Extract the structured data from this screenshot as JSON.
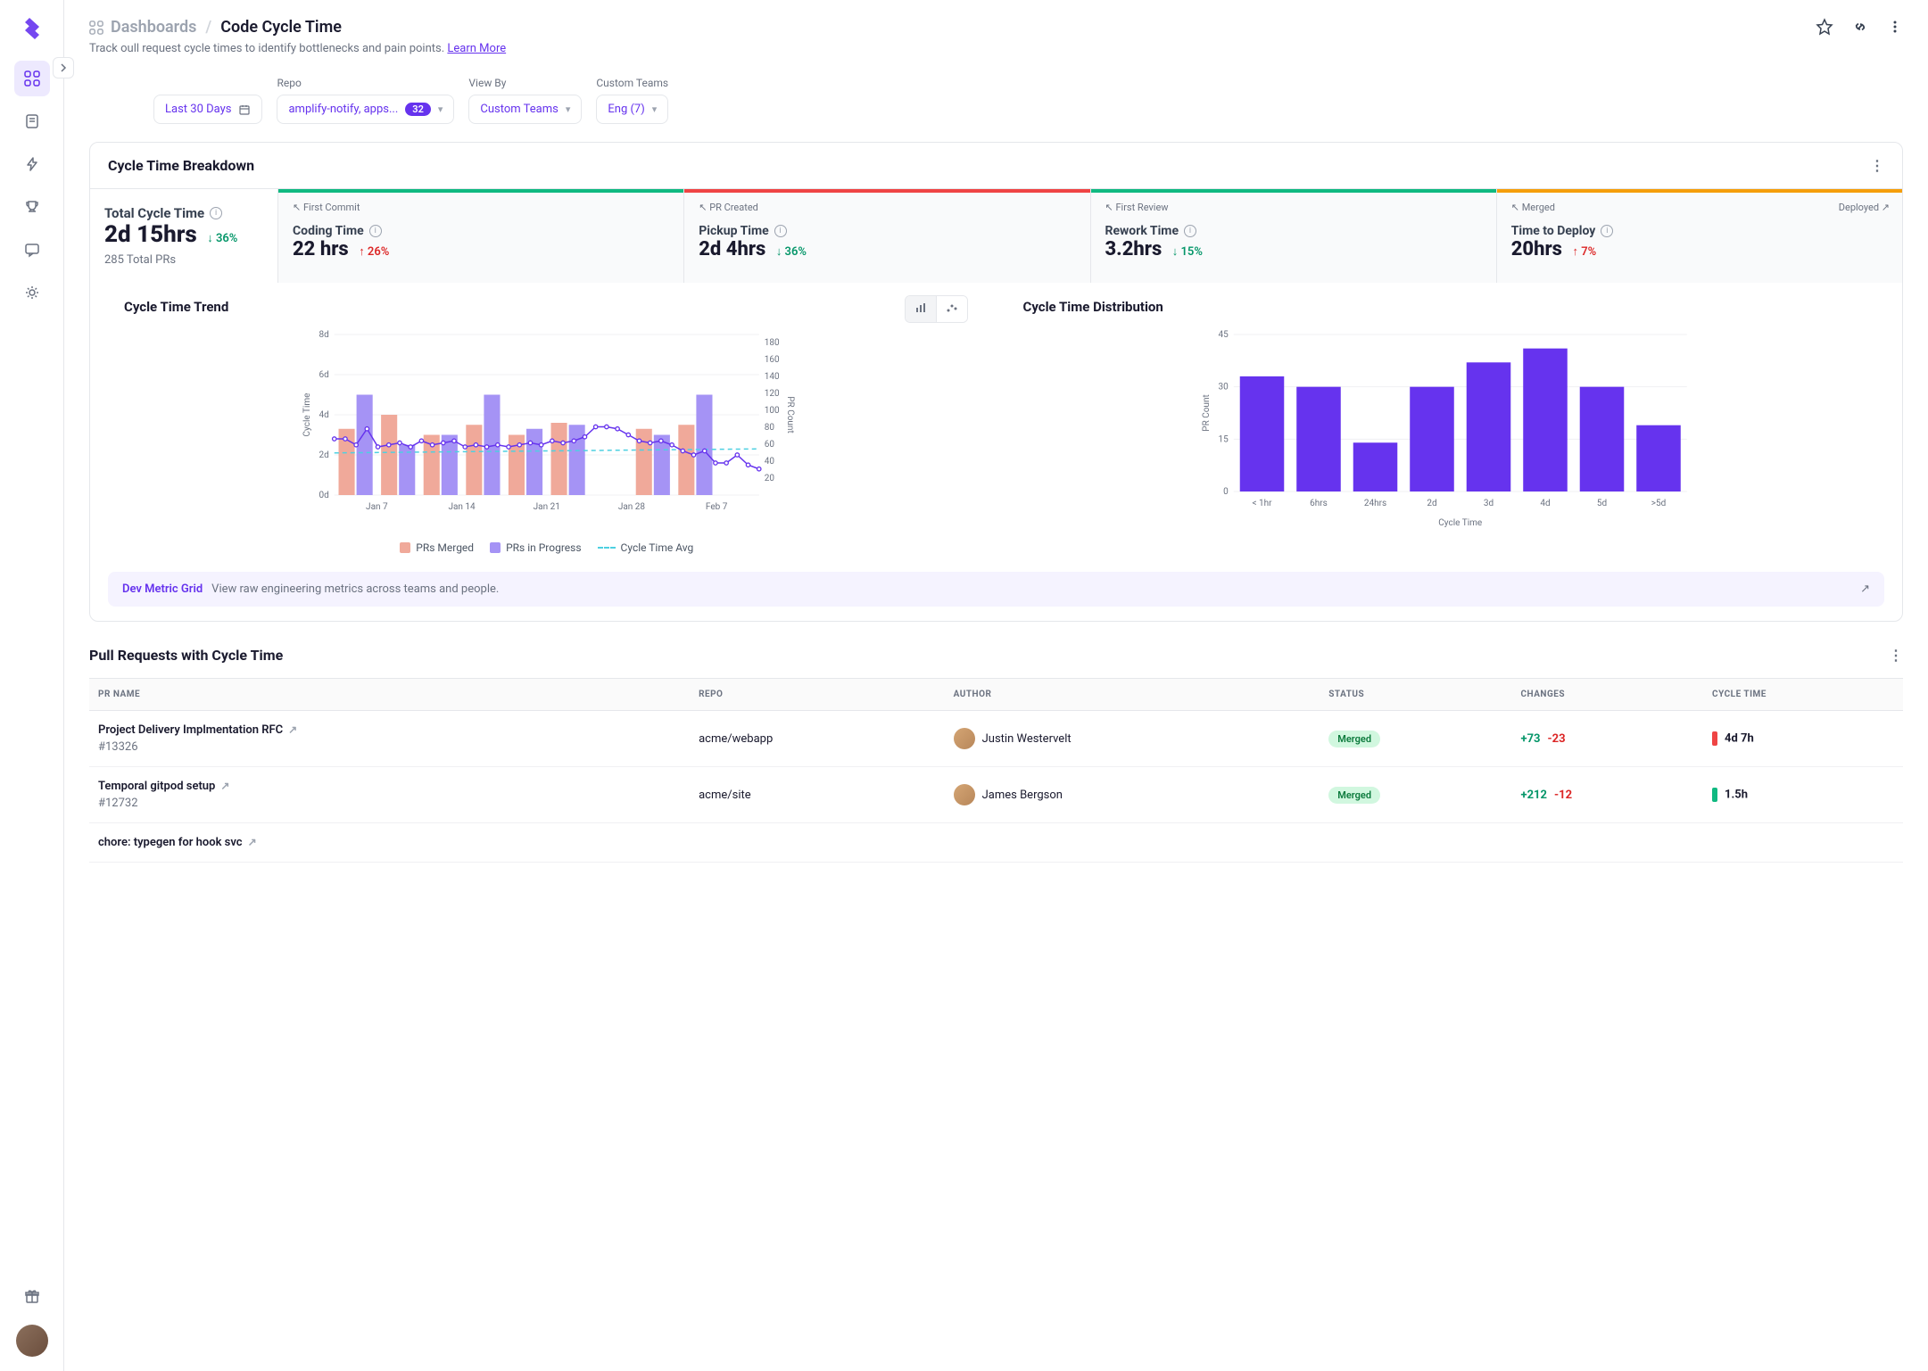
{
  "breadcrumb": {
    "parent": "Dashboards",
    "current": "Code Cycle Time"
  },
  "subtitle": "Track oull request cycle times to identify bottlenecks and pain points.",
  "learn_more": "Learn More",
  "filters": {
    "date": "Last 30 Days",
    "repo_label": "Repo",
    "repo_value": "amplify-notify, apps...",
    "repo_count": "32",
    "viewby_label": "View By",
    "viewby_value": "Custom Teams",
    "teams_label": "Custom Teams",
    "teams_value": "Eng (7)"
  },
  "breakdown": {
    "title": "Cycle Time Breakdown",
    "total": {
      "title": "Total Cycle Time",
      "value": "2d 15hrs",
      "delta": "36%",
      "delta_dir": "down",
      "sub": "285 Total PRs"
    },
    "stages": [
      {
        "event": "First Commit",
        "title": "Coding Time",
        "value": "22 hrs",
        "delta": "26%",
        "delta_dir": "up",
        "bar_color": "#10b981"
      },
      {
        "event": "PR Created",
        "title": "Pickup Time",
        "value": "2d 4hrs",
        "delta": "36%",
        "delta_dir": "down",
        "bar_color": "#ef4444"
      },
      {
        "event": "First Review",
        "title": "Rework Time",
        "value": "3.2hrs",
        "delta": "15%",
        "delta_dir": "down",
        "bar_color": "#10b981"
      },
      {
        "event": "Merged",
        "event_right": "Deployed",
        "title": "Time to Deploy",
        "value": "20hrs",
        "delta": "7%",
        "delta_dir": "up",
        "bar_color": "#f59e0b"
      }
    ]
  },
  "trend_chart": {
    "title": "Cycle Time Trend",
    "y_left_label": "Cycle Time",
    "y_right_label": "PR Count",
    "y_left_ticks": [
      "0d",
      "2d",
      "4d",
      "6d",
      "8d"
    ],
    "y_right_ticks": [
      "20",
      "40",
      "60",
      "80",
      "100",
      "120",
      "140",
      "160",
      "180"
    ],
    "x_ticks": [
      "Jan 7",
      "Jan 14",
      "Jan 21",
      "Jan 28",
      "Feb 7"
    ],
    "colors": {
      "merged": "#f0a99a",
      "progress": "#a593f5",
      "line": "#6633ee",
      "avg": "#4dd0e1",
      "grid": "#f0f0f3"
    },
    "bars_merged": [
      3.3,
      4.0,
      3.0,
      3.5,
      3.0,
      3.6,
      0,
      3.3,
      3.5,
      0
    ],
    "bars_progress": [
      5.0,
      2.5,
      3.0,
      5.0,
      3.3,
      3.5,
      0,
      3.0,
      5.0,
      0
    ],
    "line_y": [
      2.8,
      2.8,
      2.5,
      3.3,
      2.4,
      2.5,
      2.6,
      2.4,
      2.7,
      2.5,
      2.6,
      2.7,
      2.4,
      2.5,
      2.4,
      2.5,
      2.4,
      2.5,
      2.6,
      2.5,
      2.7,
      2.6,
      2.7,
      2.9,
      3.4,
      3.4,
      3.3,
      3.0,
      2.7,
      2.6,
      2.7,
      2.5,
      2.2,
      2.0,
      2.2,
      1.6,
      1.6,
      2.0,
      1.5,
      1.3
    ],
    "avg_start": 2.1,
    "avg_end": 2.3,
    "legend": {
      "merged": "PRs Merged",
      "progress": "PRs in Progress",
      "avg": "Cycle Time Avg"
    }
  },
  "dist_chart": {
    "title": "Cycle Time Distribution",
    "y_label": "PR Count",
    "x_label": "Cycle Time",
    "y_ticks": [
      "0",
      "15",
      "30",
      "45"
    ],
    "categories": [
      "< 1hr",
      "6hrs",
      "24hrs",
      "2d",
      "3d",
      "4d",
      "5d",
      ">5d"
    ],
    "values": [
      33,
      30,
      14,
      30,
      37,
      41,
      30,
      19
    ],
    "bar_color": "#6633ee",
    "grid_color": "#f0f0f3"
  },
  "callout": {
    "title": "Dev Metric Grid",
    "text": "View raw engineering metrics across teams and people."
  },
  "pr_table": {
    "title": "Pull Requests with Cycle Time",
    "columns": [
      "PR NAME",
      "REPO",
      "AUTHOR",
      "STATUS",
      "CHANGES",
      "CYCLE TIME"
    ],
    "rows": [
      {
        "name": "Project Delivery Implmentation RFC",
        "num": "#13326",
        "repo": "acme/webapp",
        "author": "Justin Westervelt",
        "status": "Merged",
        "add": "+73",
        "del": "-23",
        "ct": "4d 7h",
        "ct_color": "#ef4444"
      },
      {
        "name": "Temporal gitpod setup",
        "num": "#12732",
        "repo": "acme/site",
        "author": "James Bergson",
        "status": "Merged",
        "add": "+212",
        "del": "-12",
        "ct": "1.5h",
        "ct_color": "#10b981"
      },
      {
        "name": "chore: typegen for hook svc",
        "num": "",
        "repo": "",
        "author": "",
        "status": "",
        "add": "",
        "del": "",
        "ct": "",
        "ct_color": ""
      }
    ]
  }
}
